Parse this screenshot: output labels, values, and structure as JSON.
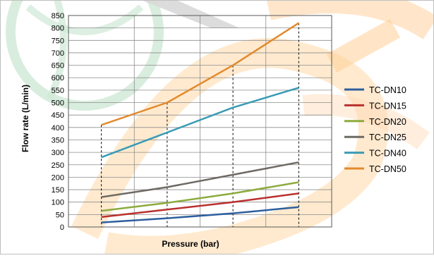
{
  "chart_data": {
    "type": "line",
    "xlabel": "Pressure (bar)",
    "ylabel": "Flow rate (L/min)",
    "ylim": [
      0,
      850
    ],
    "ytick_step": 50,
    "grid": true,
    "legend_position": "right",
    "x": [
      1,
      2,
      3,
      4
    ],
    "x_tick_labels": [
      "",
      "",
      "",
      ""
    ],
    "series": [
      {
        "name": "TC-DN10",
        "color": "#2e5f9e",
        "values": [
          18,
          35,
          55,
          80
        ]
      },
      {
        "name": "TC-DN15",
        "color": "#b8312f",
        "values": [
          40,
          70,
          100,
          135
        ]
      },
      {
        "name": "TC-DN20",
        "color": "#8dab3d",
        "values": [
          65,
          97,
          135,
          180
        ]
      },
      {
        "name": "TC-DN25",
        "color": "#6f6a64",
        "values": [
          120,
          160,
          210,
          260
        ]
      },
      {
        "name": "TC-DN40",
        "color": "#3a9bb6",
        "values": [
          280,
          380,
          480,
          560
        ]
      },
      {
        "name": "TC-DN50",
        "color": "#e38a2c",
        "values": [
          410,
          500,
          650,
          820
        ]
      }
    ]
  }
}
